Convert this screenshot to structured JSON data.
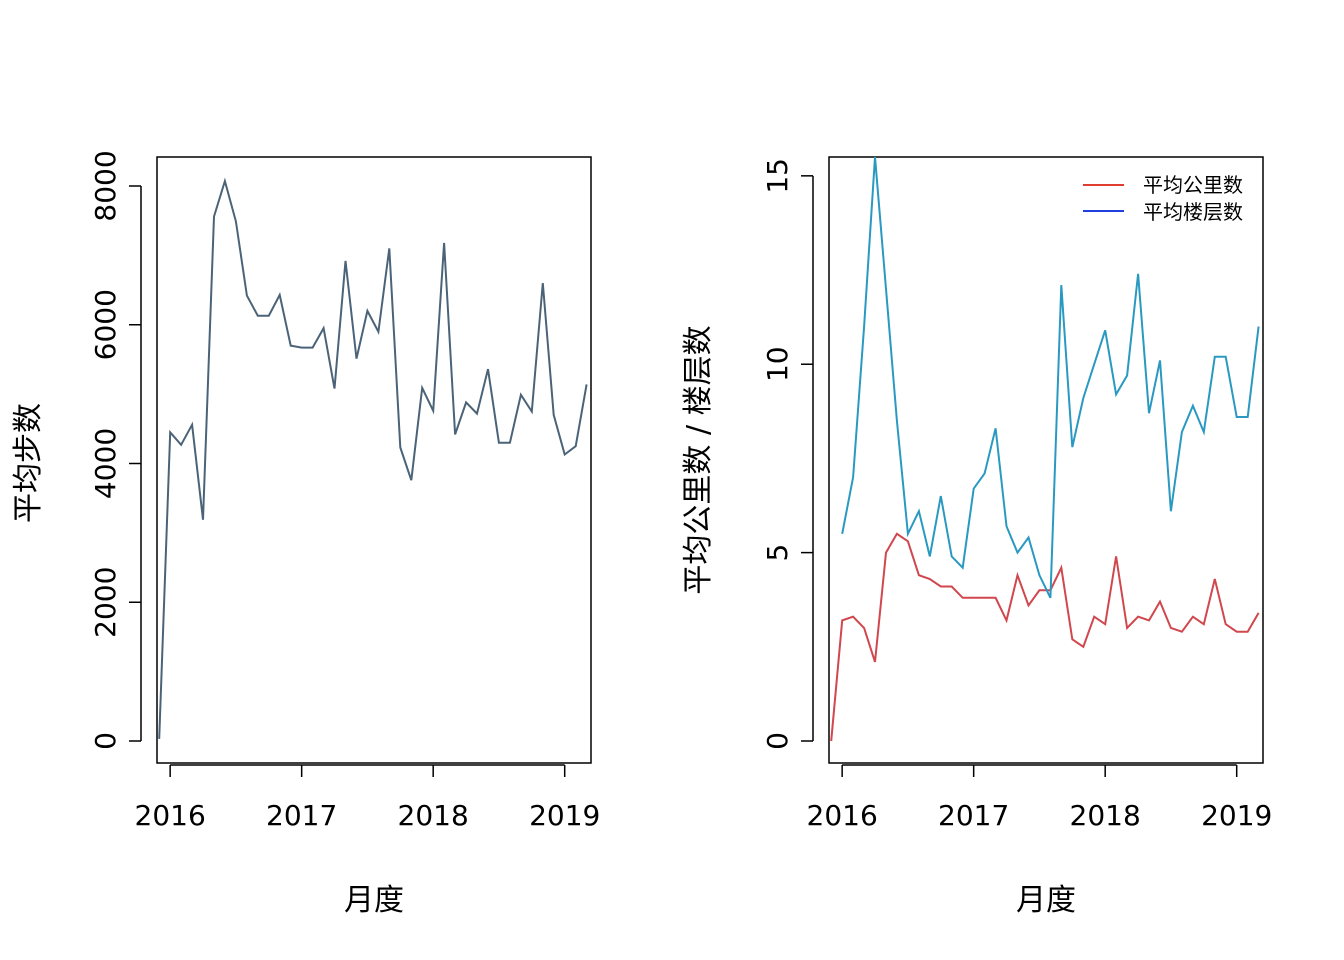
{
  "colors": {
    "steps": "#4B6378",
    "km": "#D0474E",
    "floors": "#2A99C1",
    "legend_km": "#E03C31",
    "legend_floors": "#1F3FE0"
  },
  "chart_data": [
    {
      "type": "line",
      "xlabel": "月度",
      "ylabel": "平均步数",
      "ylim": [
        0,
        8000
      ],
      "xlim": [
        2015.9,
        2019.2
      ],
      "x_ticks": [
        2016,
        2017,
        2018,
        2019
      ],
      "x_tick_labels": [
        "2016",
        "2017",
        "2018",
        "2019"
      ],
      "y_ticks": [
        0,
        2000,
        4000,
        6000,
        8000
      ],
      "y_tick_labels": [
        "0",
        "2000",
        "4000",
        "6000",
        "8000"
      ],
      "x": [
        "2015-12",
        "2016-01",
        "2016-02",
        "2016-03",
        "2016-04",
        "2016-05",
        "2016-06",
        "2016-07",
        "2016-08",
        "2016-09",
        "2016-10",
        "2016-11",
        "2016-12",
        "2017-01",
        "2017-02",
        "2017-03",
        "2017-04",
        "2017-05",
        "2017-06",
        "2017-07",
        "2017-08",
        "2017-09",
        "2017-10",
        "2017-11",
        "2017-12",
        "2018-01",
        "2018-02",
        "2018-03",
        "2018-04",
        "2018-05",
        "2018-06",
        "2018-07",
        "2018-08",
        "2018-09",
        "2018-10",
        "2018-11",
        "2018-12",
        "2019-01",
        "2019-02",
        "2019-03"
      ],
      "series": [
        {
          "values": [
            30,
            4450,
            4270,
            4560,
            3190,
            7560,
            8070,
            7490,
            6420,
            6130,
            6130,
            6430,
            5700,
            5670,
            5670,
            5950,
            5080,
            6920,
            5510,
            6200,
            5900,
            7100,
            4230,
            3760,
            5090,
            4760,
            7180,
            4420,
            4880,
            4720,
            5360,
            4300,
            4300,
            4990,
            4750,
            6600,
            4700,
            4130,
            4250,
            5140
          ]
        }
      ]
    },
    {
      "type": "line",
      "xlabel": "月度",
      "ylabel": "平均公里数 / 楼层数",
      "ylim": [
        0,
        15.5
      ],
      "xlim": [
        2015.9,
        2019.2
      ],
      "x_ticks": [
        2016,
        2017,
        2018,
        2019
      ],
      "x_tick_labels": [
        "2016",
        "2017",
        "2018",
        "2019"
      ],
      "y_ticks": [
        0,
        5,
        10,
        15
      ],
      "y_tick_labels": [
        "0",
        "5",
        "10",
        "15"
      ],
      "legend": {
        "position": "top-right"
      },
      "x": [
        "2015-12",
        "2016-01",
        "2016-02",
        "2016-03",
        "2016-04",
        "2016-05",
        "2016-06",
        "2016-07",
        "2016-08",
        "2016-09",
        "2016-10",
        "2016-11",
        "2016-12",
        "2017-01",
        "2017-02",
        "2017-03",
        "2017-04",
        "2017-05",
        "2017-06",
        "2017-07",
        "2017-08",
        "2017-09",
        "2017-10",
        "2017-11",
        "2017-12",
        "2018-01",
        "2018-02",
        "2018-03",
        "2018-04",
        "2018-05",
        "2018-06",
        "2018-07",
        "2018-08",
        "2018-09",
        "2018-10",
        "2018-11",
        "2018-12",
        "2019-01",
        "2019-02",
        "2019-03"
      ],
      "series": [
        {
          "name": "平均公里数",
          "values": [
            0.0,
            3.2,
            3.3,
            3.0,
            2.1,
            5.0,
            5.5,
            5.3,
            4.4,
            4.3,
            4.1,
            4.1,
            3.8,
            3.8,
            3.8,
            3.8,
            3.2,
            4.4,
            3.6,
            4.0,
            4.0,
            4.6,
            2.7,
            2.5,
            3.3,
            3.1,
            4.9,
            3.0,
            3.3,
            3.2,
            3.7,
            3.0,
            2.9,
            3.3,
            3.1,
            4.3,
            3.1,
            2.9,
            2.9,
            3.4
          ]
        },
        {
          "name": "平均楼层数",
          "values": [
            null,
            5.5,
            7.0,
            11.0,
            15.5,
            12.0,
            8.5,
            5.5,
            6.1,
            4.9,
            6.5,
            4.9,
            4.6,
            6.7,
            7.1,
            8.3,
            5.7,
            5.0,
            5.4,
            4.4,
            3.8,
            12.1,
            7.8,
            9.1,
            10.0,
            10.9,
            9.2,
            9.7,
            12.4,
            8.7,
            10.1,
            6.1,
            8.2,
            8.9,
            8.2,
            10.2,
            10.2,
            8.6,
            8.6,
            11.0
          ]
        }
      ]
    }
  ]
}
